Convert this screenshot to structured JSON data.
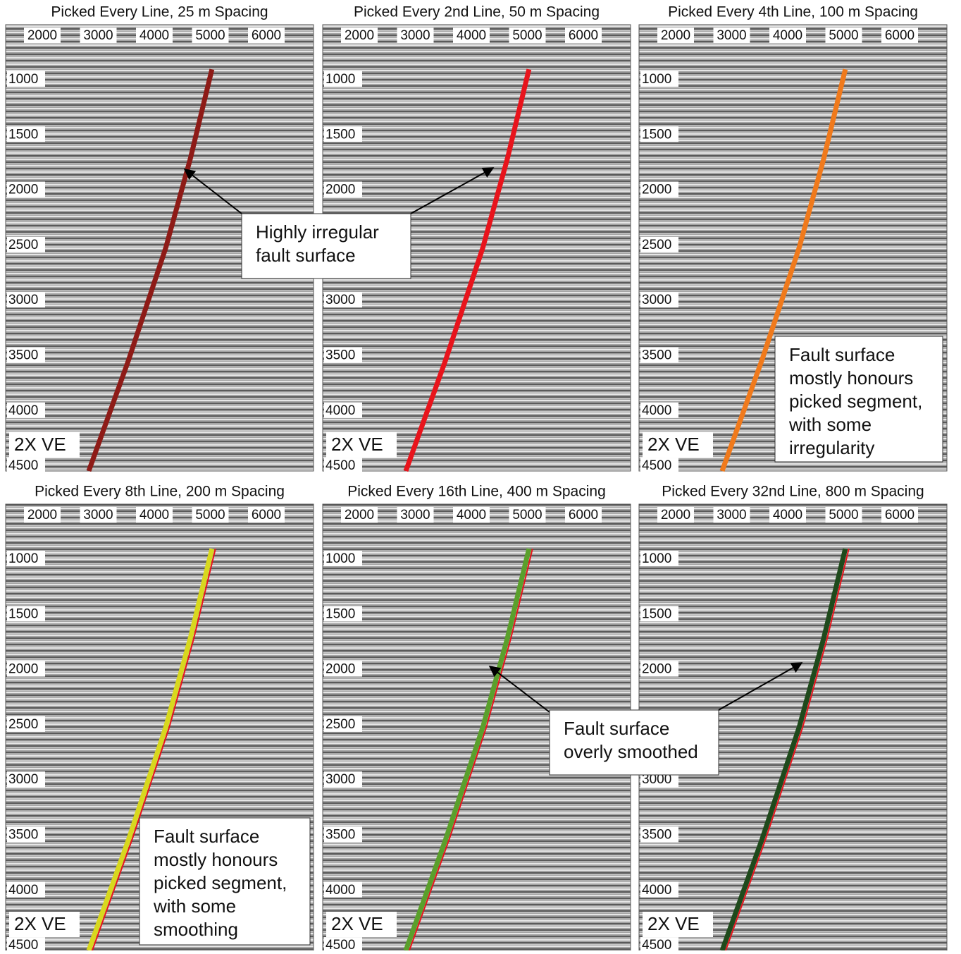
{
  "panels": [
    {
      "title": "Picked Every Line, 25 m Spacing",
      "xticks": [
        2000,
        3000,
        4000,
        5000,
        6000
      ],
      "yticks": [
        1000,
        1500,
        2000,
        2500,
        3000,
        3500,
        4000,
        4500
      ],
      "ve_label": "2X VE",
      "fault_color": "#8e1b17"
    },
    {
      "title": "Picked Every 2nd Line, 50 m Spacing",
      "xticks": [
        2000,
        3000,
        4000,
        5000,
        6000
      ],
      "yticks": [
        1000,
        1500,
        2000,
        2500,
        3000,
        3500,
        4000,
        4500
      ],
      "ve_label": "2X VE",
      "fault_color": "#e8141c"
    },
    {
      "title": "Picked Every 4th Line, 100 m Spacing",
      "xticks": [
        2000,
        3000,
        4000,
        5000,
        6000
      ],
      "yticks": [
        1000,
        1500,
        2000,
        2500,
        3000,
        3500,
        4000,
        4500
      ],
      "ve_label": "2X VE",
      "fault_color": "#f07a1c"
    },
    {
      "title": "Picked Every 8th Line, 200 m Spacing",
      "xticks": [
        2000,
        3000,
        4000,
        5000,
        6000
      ],
      "yticks": [
        1000,
        1500,
        2000,
        2500,
        3000,
        3500,
        4000,
        4500
      ],
      "ve_label": "2X VE",
      "fault_color": "#d8d81e"
    },
    {
      "title": "Picked Every 16th Line, 400 m Spacing",
      "xticks": [
        2000,
        3000,
        4000,
        5000,
        6000
      ],
      "yticks": [
        1000,
        1500,
        2000,
        2500,
        3000,
        3500,
        4000,
        4500
      ],
      "ve_label": "2X VE",
      "fault_color": "#5aa02c"
    },
    {
      "title": "Picked Every 32nd Line, 800 m Spacing",
      "xticks": [
        2000,
        3000,
        4000,
        5000,
        6000
      ],
      "yticks": [
        1000,
        1500,
        2000,
        2500,
        3000,
        3500,
        4000,
        4500
      ],
      "ve_label": "2X VE",
      "fault_color": "#1f4a1c"
    }
  ],
  "annotations": [
    {
      "lines": [
        "Highly irregular",
        "fault surface"
      ]
    },
    {
      "lines": [
        "Fault surface",
        "mostly honours",
        "picked segment,",
        "with some",
        "irregularity"
      ]
    },
    {
      "lines": [
        "Fault surface",
        "mostly honours",
        "picked segment,",
        "with some",
        "smoothing"
      ]
    },
    {
      "lines": [
        "Fault surface",
        "overly smoothed"
      ]
    }
  ]
}
